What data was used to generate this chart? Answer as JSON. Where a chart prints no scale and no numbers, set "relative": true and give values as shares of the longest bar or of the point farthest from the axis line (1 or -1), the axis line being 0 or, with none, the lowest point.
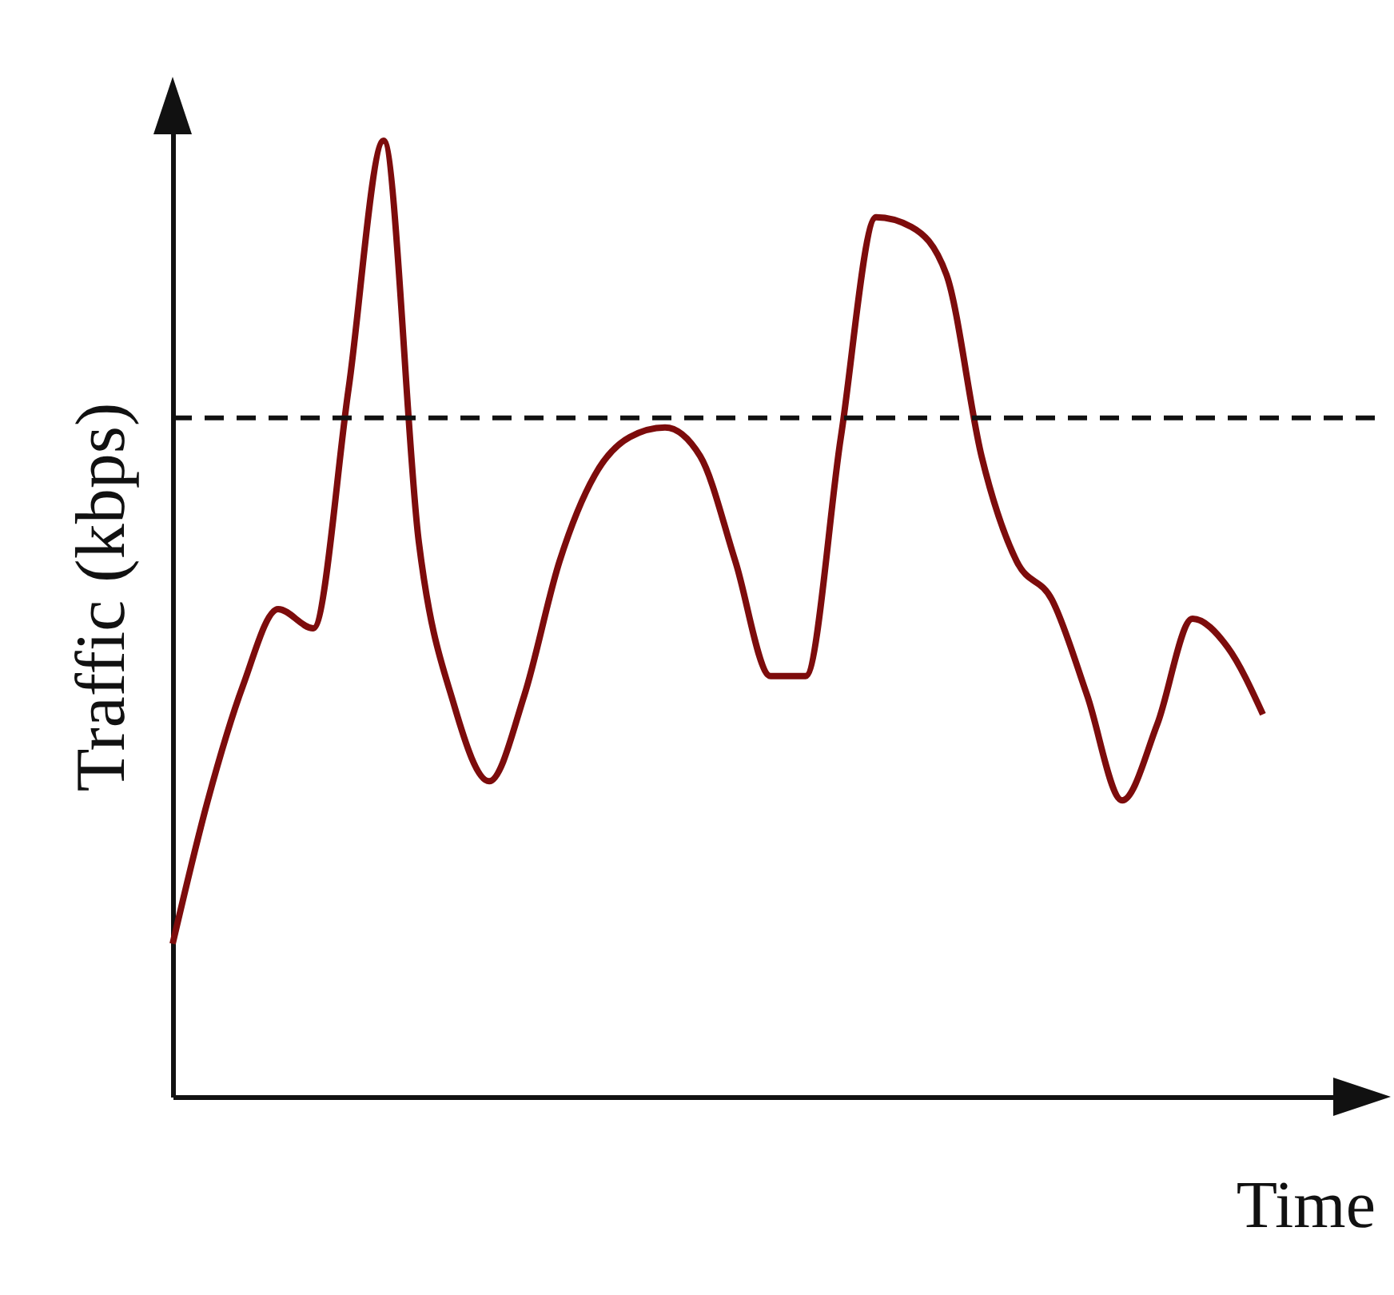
{
  "chart_data": {
    "type": "line",
    "relative": true,
    "xlabel": "Time",
    "ylabel": "Traffic (kbps)",
    "categories": [
      null,
      null,
      null,
      null,
      null,
      null,
      null,
      null,
      null,
      null,
      null,
      null,
      null,
      null,
      null,
      null,
      null,
      null,
      null,
      null,
      null,
      null,
      null,
      null,
      null,
      null,
      null,
      null,
      null,
      null,
      null,
      null
    ],
    "series": [
      {
        "color": "#7d0c0c",
        "values": [
          0.16,
          0.31,
          0.43,
          0.51,
          0.49,
          0.74,
          1.0,
          0.58,
          0.41,
          0.33,
          0.42,
          0.56,
          0.65,
          0.69,
          0.7,
          0.67,
          0.56,
          0.44,
          0.44,
          0.69,
          0.92,
          0.91,
          0.86,
          0.67,
          0.56,
          0.52,
          0.42,
          0.31,
          0.39,
          0.5,
          0.47,
          0.4
        ]
      }
    ],
    "ref_lines": [
      {
        "axis": "y",
        "value": 0.71,
        "color": "#111111",
        "line_style": "dashed"
      }
    ]
  }
}
